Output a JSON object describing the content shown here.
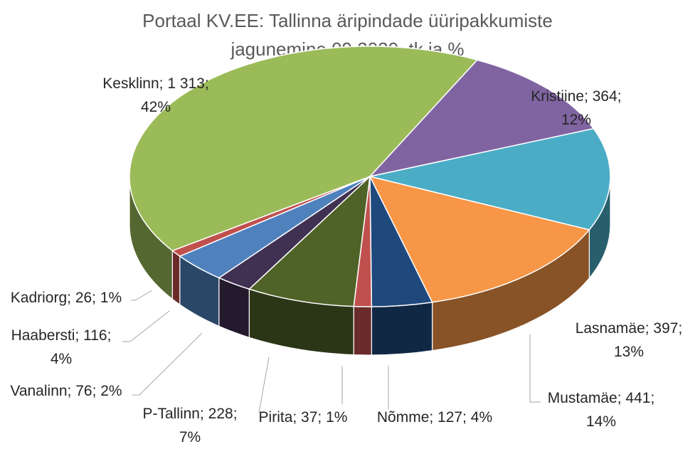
{
  "chart_data": {
    "type": "pie",
    "title_lines": [
      "Portaal KV.EE: Tallinna äripindade üüripakkumiste",
      "jagunemine 09.2020, tk ja %"
    ],
    "slices": [
      {
        "name": "Kristiine",
        "value": 364,
        "percent": "12%",
        "color": "#8064a2",
        "label_lines": [
          "Kristiine; 364;",
          "12%"
        ]
      },
      {
        "name": "Lasnamäe",
        "value": 397,
        "percent": "13%",
        "color": "#4bacc6",
        "label_lines": [
          "Lasnamäe; 397;",
          "13%"
        ]
      },
      {
        "name": "Mustamäe",
        "value": 441,
        "percent": "14%",
        "color": "#f79646",
        "label_lines": [
          "Mustamäe; 441;",
          "14%"
        ]
      },
      {
        "name": "Nõmme",
        "value": 127,
        "percent": "4%",
        "color": "#1f497d",
        "label_lines": [
          "Nõmme; 127; 4%"
        ]
      },
      {
        "name": "Pirita",
        "value": 37,
        "percent": "1%",
        "color": "#c0504d",
        "label_lines": [
          "Pirita; 37; 1%"
        ]
      },
      {
        "name": "P-Tallinn",
        "value": 228,
        "percent": "7%",
        "color": "#4f6228",
        "label_lines": [
          "P-Tallinn; 228;",
          "7%"
        ]
      },
      {
        "name": "Vanalinn",
        "value": 76,
        "percent": "2%",
        "color": "#403152",
        "label_lines": [
          "Vanalinn; 76; 2%"
        ]
      },
      {
        "name": "Haabersti",
        "value": 116,
        "percent": "4%",
        "color": "#4f81bd",
        "label_lines": [
          "Haabersti; 116;",
          "4%"
        ]
      },
      {
        "name": "Kadriorg",
        "value": 26,
        "percent": "1%",
        "color": "#c0504d",
        "label_lines": [
          "Kadriorg; 26; 1%"
        ]
      },
      {
        "name": "Kesklinn",
        "value": 1313,
        "percent": "42%",
        "color": "#9bbb59",
        "label_lines": [
          "Kesklinn; 1 313;",
          "42%"
        ]
      }
    ],
    "legend": "none",
    "style": "3d-pie"
  }
}
